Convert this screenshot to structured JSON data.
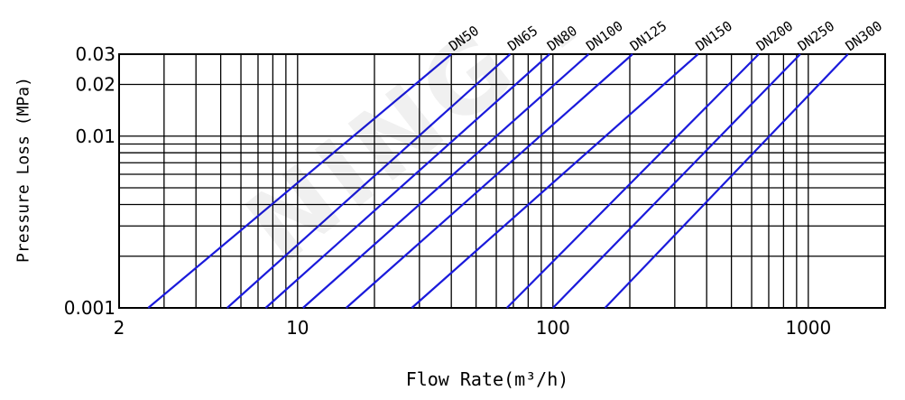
{
  "chart_data": {
    "type": "line",
    "title": "",
    "xlabel": "Flow Rate(m³/h)",
    "ylabel": "Pressure Loss (MPa)",
    "x_scale": "log",
    "y_scale": "log",
    "xlim": [
      2,
      2000
    ],
    "ylim": [
      0.001,
      0.03
    ],
    "x_ticks": [
      {
        "value": 2,
        "label": "2"
      },
      {
        "value": 10,
        "label": "10"
      },
      {
        "value": 100,
        "label": "100"
      },
      {
        "value": 1000,
        "label": "1000"
      }
    ],
    "y_ticks": [
      {
        "value": 0.001,
        "label": "0.001"
      },
      {
        "value": 0.01,
        "label": "0.01"
      },
      {
        "value": 0.02,
        "label": "0.02"
      },
      {
        "value": 0.03,
        "label": "0.03"
      }
    ],
    "grid": true,
    "line_color": "#1a1adb",
    "series": [
      {
        "name": "DN50",
        "x": [
          2.6,
          40
        ],
        "y": [
          0.001,
          0.03
        ]
      },
      {
        "name": "DN65",
        "x": [
          5.3,
          68
        ],
        "y": [
          0.001,
          0.03
        ]
      },
      {
        "name": "DN80",
        "x": [
          7.5,
          97
        ],
        "y": [
          0.001,
          0.03
        ]
      },
      {
        "name": "DN100",
        "x": [
          10.5,
          138
        ],
        "y": [
          0.001,
          0.03
        ]
      },
      {
        "name": "DN125",
        "x": [
          15.5,
          205
        ],
        "y": [
          0.001,
          0.03
        ]
      },
      {
        "name": "DN150",
        "x": [
          28,
          370
        ],
        "y": [
          0.001,
          0.03
        ]
      },
      {
        "name": "DN200",
        "x": [
          66,
          640
        ],
        "y": [
          0.001,
          0.03
        ]
      },
      {
        "name": "DN250",
        "x": [
          100,
          930
        ],
        "y": [
          0.001,
          0.03
        ]
      },
      {
        "name": "DN300",
        "x": [
          160,
          1430
        ],
        "y": [
          0.001,
          0.03
        ]
      }
    ]
  },
  "watermark": "NING BO"
}
